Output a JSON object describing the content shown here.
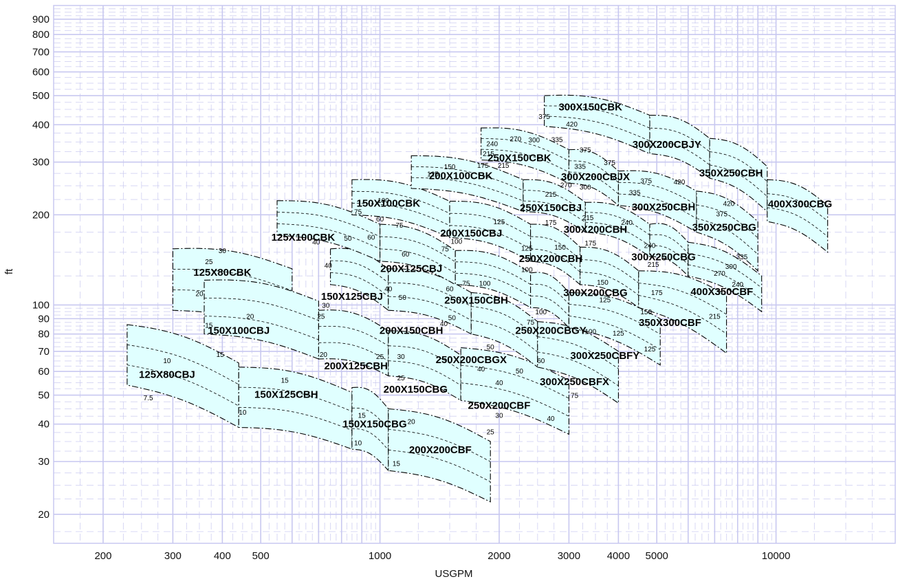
{
  "chart_data": {
    "type": "scatter",
    "title": "",
    "xlabel": "USGPM",
    "ylabel": "ft",
    "x_scale": "log",
    "y_scale": "log",
    "xlim": [
      150,
      20000
    ],
    "ylim": [
      16,
      1000
    ],
    "x_ticks": [
      200,
      300,
      400,
      500,
      1000,
      2000,
      3000,
      4000,
      5000,
      10000
    ],
    "x_tick_labels": [
      "200",
      "300",
      "400",
      "500",
      "1000",
      "2000",
      "3000",
      "4000",
      "5000",
      "10000"
    ],
    "y_ticks": [
      20,
      30,
      40,
      50,
      60,
      70,
      80,
      90,
      100,
      200,
      300,
      400,
      500,
      600,
      700,
      800,
      900
    ],
    "y_tick_labels": [
      "20",
      "30",
      "40",
      "50",
      "60",
      "70",
      "80",
      "90",
      "100",
      "200",
      "300",
      "400",
      "500",
      "600",
      "700",
      "800",
      "900"
    ],
    "grid": true,
    "region_color": "#e0ffff",
    "grid_color": "#c8c8f0",
    "pump_series": [
      {
        "name": "125X80CBJ",
        "flow_range": [
          230,
          440
        ],
        "head_at_left": [
          54,
          86
        ],
        "head_at_right": [
          39,
          64
        ]
      },
      {
        "name": "150X125CBH",
        "flow_range": [
          440,
          850
        ],
        "head_at_left": [
          39,
          62
        ],
        "head_at_right": [
          33,
          51
        ]
      },
      {
        "name": "150X150CBG",
        "flow_range": [
          850,
          1050
        ],
        "head_at_left": [
          33,
          53
        ],
        "head_at_right": [
          28,
          45
        ]
      },
      {
        "name": "200X200CBF",
        "flow_range": [
          1050,
          1900
        ],
        "head_at_left": [
          28,
          45
        ],
        "head_at_right": [
          22,
          35
        ]
      },
      {
        "name": "125X80CBK",
        "flow_range": [
          300,
          600
        ],
        "head_at_left": [
          96,
          154
        ],
        "head_at_right": [
          80,
          132
        ]
      },
      {
        "name": "150X100CBJ",
        "flow_range": [
          360,
          700
        ],
        "head_at_left": [
          80,
          121
        ],
        "head_at_right": [
          66,
          103
        ]
      },
      {
        "name": "200X125CBH",
        "flow_range": [
          700,
          1050
        ],
        "head_at_left": [
          66,
          96
        ],
        "head_at_right": [
          58,
          82
        ]
      },
      {
        "name": "200X150CBG",
        "flow_range": [
          1050,
          1600
        ],
        "head_at_left": [
          58,
          82
        ],
        "head_at_right": [
          48,
          68
        ]
      },
      {
        "name": "250X200CBF",
        "flow_range": [
          1600,
          3000
        ],
        "head_at_left": [
          48,
          72
        ],
        "head_at_right": [
          37,
          56
        ]
      },
      {
        "name": "150X125CBJ",
        "flow_range": [
          750,
          1050
        ],
        "head_at_left": [
          117,
          154
        ],
        "head_at_right": [
          96,
          132
        ]
      },
      {
        "name": "200X150CBH",
        "flow_range": [
          1050,
          1700
        ],
        "head_at_left": [
          96,
          132
        ],
        "head_at_right": [
          80,
          110
        ]
      },
      {
        "name": "250X200CBGX",
        "flow_range": [
          1700,
          2500
        ],
        "head_at_left": [
          80,
          110
        ],
        "head_at_right": [
          62,
          88
        ]
      },
      {
        "name": "300X250CBFX",
        "flow_range": [
          2500,
          4000
        ],
        "head_at_left": [
          62,
          88
        ],
        "head_at_right": [
          47,
          70
        ]
      },
      {
        "name": "125X100CBK",
        "flow_range": [
          550,
          1000
        ],
        "head_at_left": [
          171,
          223
        ],
        "head_at_right": [
          140,
          186
        ]
      },
      {
        "name": "200X125CBJ",
        "flow_range": [
          1000,
          1550
        ],
        "head_at_left": [
          140,
          186
        ],
        "head_at_right": [
          117,
          152
        ]
      },
      {
        "name": "250X150CBH",
        "flow_range": [
          1550,
          2400
        ],
        "head_at_left": [
          117,
          152
        ],
        "head_at_right": [
          98,
          128
        ]
      },
      {
        "name": "250X200CBGY",
        "flow_range": [
          2400,
          3000
        ],
        "head_at_left": [
          98,
          128
        ],
        "head_at_right": [
          84,
          110
        ]
      },
      {
        "name": "300X250CBFY",
        "flow_range": [
          3000,
          5100
        ],
        "head_at_left": [
          84,
          110
        ],
        "head_at_right": [
          63,
          90
        ]
      },
      {
        "name": "150X100CBK",
        "flow_range": [
          850,
          1500
        ],
        "head_at_left": [
          200,
          262
        ],
        "head_at_right": [
          168,
          222
        ]
      },
      {
        "name": "200X150CBJ",
        "flow_range": [
          1500,
          2400
        ],
        "head_at_left": [
          168,
          222
        ],
        "head_at_right": [
          140,
          186
        ]
      },
      {
        "name": "250X200CBH",
        "flow_range": [
          2400,
          3200
        ],
        "head_at_left": [
          140,
          186
        ],
        "head_at_right": [
          117,
          156
        ]
      },
      {
        "name": "300X200CBG",
        "flow_range": [
          3200,
          4500
        ],
        "head_at_left": [
          117,
          156
        ],
        "head_at_right": [
          98,
          130
        ]
      },
      {
        "name": "350X300CBF",
        "flow_range": [
          4500,
          7500
        ],
        "head_at_left": [
          98,
          130
        ],
        "head_at_right": [
          69,
          108
        ]
      },
      {
        "name": "200X100CBK",
        "flow_range": [
          1200,
          2300
        ],
        "head_at_left": [
          245,
          315
        ],
        "head_at_right": [
          205,
          262
        ]
      },
      {
        "name": "250X150CBJ",
        "flow_range": [
          2300,
          3300
        ],
        "head_at_left": [
          205,
          262
        ],
        "head_at_right": [
          175,
          220
        ]
      },
      {
        "name": "300X200CBH",
        "flow_range": [
          3300,
          4800
        ],
        "head_at_left": [
          175,
          220
        ],
        "head_at_right": [
          145,
          186
        ]
      },
      {
        "name": "300X250CBG",
        "flow_range": [
          4800,
          6000
        ],
        "head_at_left": [
          145,
          186
        ],
        "head_at_right": [
          125,
          162
        ]
      },
      {
        "name": "400X350CBF",
        "flow_range": [
          6000,
          9200
        ],
        "head_at_left": [
          125,
          162
        ],
        "head_at_right": [
          95,
          125
        ]
      },
      {
        "name": "250X150CBK",
        "flow_range": [
          1800,
          3000
        ],
        "head_at_left": [
          305,
          390
        ],
        "head_at_right": [
          255,
          330
        ]
      },
      {
        "name": "300X200CBJX",
        "flow_range": [
          3000,
          4000
        ],
        "head_at_left": [
          255,
          330
        ],
        "head_at_right": [
          215,
          280
        ]
      },
      {
        "name": "300X250CBH",
        "flow_range": [
          4000,
          6300
        ],
        "head_at_left": [
          215,
          280
        ],
        "head_at_right": [
          175,
          240
        ]
      },
      {
        "name": "350X250CBG",
        "flow_range": [
          6300,
          9000
        ],
        "head_at_left": [
          175,
          240
        ],
        "head_at_right": [
          130,
          190
        ]
      },
      {
        "name": "300X150CBK",
        "flow_range": [
          2600,
          4800
        ],
        "head_at_left": [
          395,
          500
        ],
        "head_at_right": [
          320,
          430
        ]
      },
      {
        "name": "300X200CBJY",
        "flow_range": [
          4800,
          6800
        ],
        "head_at_left": [
          320,
          430
        ],
        "head_at_right": [
          265,
          360
        ]
      },
      {
        "name": "350X250CBH",
        "flow_range": [
          6800,
          9500
        ],
        "head_at_left": [
          265,
          360
        ],
        "head_at_right": [
          205,
          290
        ]
      },
      {
        "name": "400X300CBG",
        "flow_range": [
          9500,
          13500
        ],
        "head_at_left": [
          190,
          262
        ],
        "head_at_right": [
          150,
          215
        ]
      }
    ],
    "region_labels": [
      {
        "text": "125X80CBJ",
        "x": 290,
        "y": 57
      },
      {
        "text": "150X125CBH",
        "x": 580,
        "y": 49
      },
      {
        "text": "150X150CBG",
        "x": 970,
        "y": 39
      },
      {
        "text": "200X200CBF",
        "x": 1420,
        "y": 32
      },
      {
        "text": "125X80CBK",
        "x": 400,
        "y": 125
      },
      {
        "text": "150X100CBJ",
        "x": 440,
        "y": 80
      },
      {
        "text": "200X125CBH",
        "x": 870,
        "y": 61
      },
      {
        "text": "200X150CBG",
        "x": 1230,
        "y": 51
      },
      {
        "text": "250X200CBF",
        "x": 2000,
        "y": 45
      },
      {
        "text": "150X125CBJ",
        "x": 850,
        "y": 104
      },
      {
        "text": "200X150CBH",
        "x": 1200,
        "y": 80
      },
      {
        "text": "250X200CBGX",
        "x": 1700,
        "y": 64
      },
      {
        "text": "300X250CBFX",
        "x": 3100,
        "y": 54
      },
      {
        "text": "125X100CBK",
        "x": 640,
        "y": 164
      },
      {
        "text": "200X125CBJ",
        "x": 1200,
        "y": 129
      },
      {
        "text": "250X150CBH",
        "x": 1750,
        "y": 101
      },
      {
        "text": "250X200CBGY",
        "x": 2700,
        "y": 80
      },
      {
        "text": "300X250CBFY",
        "x": 3700,
        "y": 66
      },
      {
        "text": "150X100CBK",
        "x": 1050,
        "y": 213
      },
      {
        "text": "200X150CBJ",
        "x": 1700,
        "y": 169
      },
      {
        "text": "250X200CBH",
        "x": 2700,
        "y": 139
      },
      {
        "text": "300X200CBG",
        "x": 3500,
        "y": 107
      },
      {
        "text": "350X300CBF",
        "x": 5400,
        "y": 85
      },
      {
        "text": "200X100CBK",
        "x": 1600,
        "y": 263
      },
      {
        "text": "250X150CBJ",
        "x": 2700,
        "y": 206
      },
      {
        "text": "300X200CBH",
        "x": 3500,
        "y": 174
      },
      {
        "text": "300X250CBG",
        "x": 5200,
        "y": 141
      },
      {
        "text": "400X350CBF",
        "x": 7300,
        "y": 108
      },
      {
        "text": "250X150CBK",
        "x": 2250,
        "y": 302
      },
      {
        "text": "300X200CBJX",
        "x": 3500,
        "y": 261
      },
      {
        "text": "300X250CBH",
        "x": 5200,
        "y": 207
      },
      {
        "text": "350X250CBG",
        "x": 7400,
        "y": 177
      },
      {
        "text": "300X150CBK",
        "x": 3400,
        "y": 446
      },
      {
        "text": "300X200CBJY",
        "x": 5300,
        "y": 335
      },
      {
        "text": "350X250CBH",
        "x": 7700,
        "y": 269
      },
      {
        "text": "400X300CBG",
        "x": 11500,
        "y": 212
      }
    ],
    "impeller_labels": [
      {
        "text": "10",
        "x": 290,
        "y": 64
      },
      {
        "text": "7.5",
        "x": 260,
        "y": 48
      },
      {
        "text": "15",
        "x": 395,
        "y": 67
      },
      {
        "text": "15",
        "x": 575,
        "y": 55
      },
      {
        "text": "10",
        "x": 450,
        "y": 43
      },
      {
        "text": "15",
        "x": 900,
        "y": 42
      },
      {
        "text": "10",
        "x": 880,
        "y": 34
      },
      {
        "text": "20",
        "x": 1200,
        "y": 40
      },
      {
        "text": "15",
        "x": 1100,
        "y": 29
      },
      {
        "text": "20",
        "x": 350,
        "y": 107
      },
      {
        "text": "25",
        "x": 370,
        "y": 137
      },
      {
        "text": "30",
        "x": 400,
        "y": 149
      },
      {
        "text": "15",
        "x": 370,
        "y": 84
      },
      {
        "text": "20",
        "x": 470,
        "y": 90
      },
      {
        "text": "25",
        "x": 710,
        "y": 90
      },
      {
        "text": "20",
        "x": 720,
        "y": 67
      },
      {
        "text": "25",
        "x": 1000,
        "y": 66
      },
      {
        "text": "30",
        "x": 1130,
        "y": 66
      },
      {
        "text": "25",
        "x": 1130,
        "y": 56
      },
      {
        "text": "40",
        "x": 2000,
        "y": 54
      },
      {
        "text": "30",
        "x": 2000,
        "y": 42
      },
      {
        "text": "25",
        "x": 1900,
        "y": 37
      },
      {
        "text": "40",
        "x": 690,
        "y": 159
      },
      {
        "text": "50",
        "x": 830,
        "y": 164
      },
      {
        "text": "60",
        "x": 950,
        "y": 165
      },
      {
        "text": "40",
        "x": 740,
        "y": 133
      },
      {
        "text": "30",
        "x": 730,
        "y": 98
      },
      {
        "text": "40",
        "x": 1050,
        "y": 111
      },
      {
        "text": "50",
        "x": 1140,
        "y": 104
      },
      {
        "text": "40",
        "x": 1450,
        "y": 85
      },
      {
        "text": "50",
        "x": 1520,
        "y": 89
      },
      {
        "text": "50",
        "x": 1900,
        "y": 71
      },
      {
        "text": "40",
        "x": 1800,
        "y": 60
      },
      {
        "text": "50",
        "x": 2250,
        "y": 59
      },
      {
        "text": "60",
        "x": 2550,
        "y": 64
      },
      {
        "text": "75",
        "x": 3100,
        "y": 49
      },
      {
        "text": "40",
        "x": 2700,
        "y": 41
      },
      {
        "text": "75",
        "x": 880,
        "y": 201
      },
      {
        "text": "100",
        "x": 1020,
        "y": 219
      },
      {
        "text": "60",
        "x": 1000,
        "y": 190
      },
      {
        "text": "75",
        "x": 1120,
        "y": 181
      },
      {
        "text": "60",
        "x": 1160,
        "y": 145
      },
      {
        "text": "75",
        "x": 1460,
        "y": 151
      },
      {
        "text": "75",
        "x": 1650,
        "y": 116
      },
      {
        "text": "100",
        "x": 1840,
        "y": 116
      },
      {
        "text": "60",
        "x": 1500,
        "y": 111
      },
      {
        "text": "75",
        "x": 2400,
        "y": 86
      },
      {
        "text": "100",
        "x": 2550,
        "y": 93
      },
      {
        "text": "100",
        "x": 3400,
        "y": 80
      },
      {
        "text": "125",
        "x": 4000,
        "y": 79
      },
      {
        "text": "125",
        "x": 1360,
        "y": 269
      },
      {
        "text": "150",
        "x": 1500,
        "y": 284
      },
      {
        "text": "175",
        "x": 1820,
        "y": 287
      },
      {
        "text": "215",
        "x": 2050,
        "y": 287
      },
      {
        "text": "100",
        "x": 1560,
        "y": 160
      },
      {
        "text": "125",
        "x": 2000,
        "y": 186
      },
      {
        "text": "100",
        "x": 2350,
        "y": 129
      },
      {
        "text": "125",
        "x": 2350,
        "y": 152
      },
      {
        "text": "150",
        "x": 2850,
        "y": 153
      },
      {
        "text": "150",
        "x": 3650,
        "y": 117
      },
      {
        "text": "125",
        "x": 3700,
        "y": 102
      },
      {
        "text": "150",
        "x": 4700,
        "y": 93
      },
      {
        "text": "125",
        "x": 4800,
        "y": 70
      },
      {
        "text": "240",
        "x": 1920,
        "y": 339
      },
      {
        "text": "215",
        "x": 1880,
        "y": 314
      },
      {
        "text": "270",
        "x": 2200,
        "y": 352
      },
      {
        "text": "300",
        "x": 2450,
        "y": 349
      },
      {
        "text": "335",
        "x": 2800,
        "y": 350
      },
      {
        "text": "215",
        "x": 2700,
        "y": 230
      },
      {
        "text": "175",
        "x": 2700,
        "y": 185
      },
      {
        "text": "215",
        "x": 3350,
        "y": 192
      },
      {
        "text": "175",
        "x": 3400,
        "y": 158
      },
      {
        "text": "240",
        "x": 4200,
        "y": 185
      },
      {
        "text": "240",
        "x": 4800,
        "y": 155
      },
      {
        "text": "215",
        "x": 4900,
        "y": 134
      },
      {
        "text": "175",
        "x": 5000,
        "y": 108
      },
      {
        "text": "215",
        "x": 7000,
        "y": 90
      },
      {
        "text": "240",
        "x": 8000,
        "y": 115
      },
      {
        "text": "270",
        "x": 7200,
        "y": 125
      },
      {
        "text": "300",
        "x": 7700,
        "y": 132
      },
      {
        "text": "335",
        "x": 8200,
        "y": 142
      },
      {
        "text": "375",
        "x": 2600,
        "y": 418
      },
      {
        "text": "420",
        "x": 3050,
        "y": 394
      },
      {
        "text": "375",
        "x": 3300,
        "y": 323
      },
      {
        "text": "335",
        "x": 3200,
        "y": 285
      },
      {
        "text": "375",
        "x": 3800,
        "y": 293
      },
      {
        "text": "270",
        "x": 2950,
        "y": 247
      },
      {
        "text": "300",
        "x": 3300,
        "y": 243
      },
      {
        "text": "335",
        "x": 4400,
        "y": 233
      },
      {
        "text": "375",
        "x": 4700,
        "y": 255
      },
      {
        "text": "420",
        "x": 5700,
        "y": 253
      },
      {
        "text": "375",
        "x": 7300,
        "y": 198
      },
      {
        "text": "420",
        "x": 7600,
        "y": 214
      }
    ]
  }
}
